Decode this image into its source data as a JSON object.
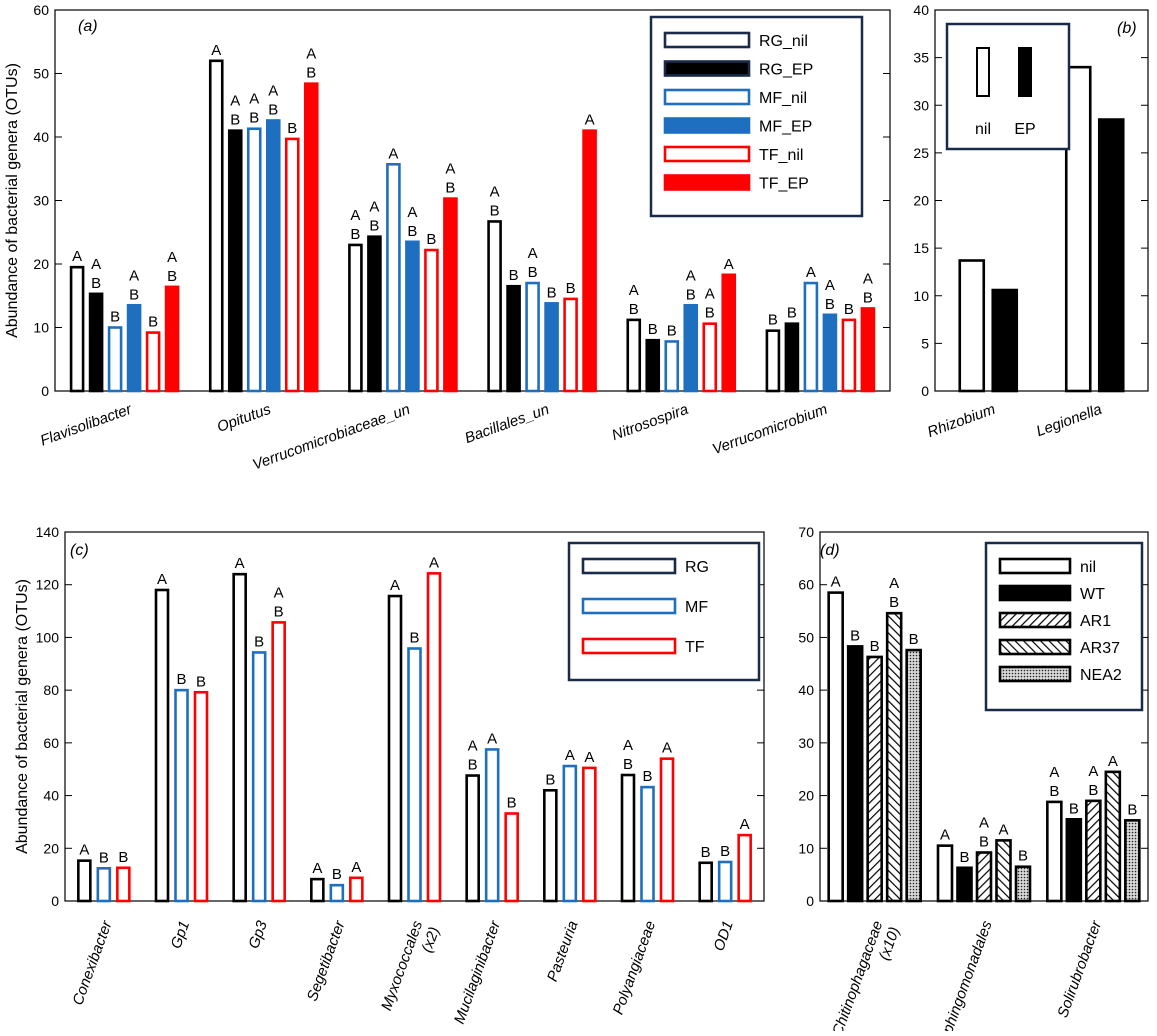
{
  "colors": {
    "RG": "#000000",
    "MF": "#1f6fc0",
    "TF": "#ff0000",
    "legend_frame": "#1a2a4a",
    "background": "#ffffff"
  },
  "chart_data": [
    {
      "panel": "a",
      "panel_label": "(a)",
      "type": "bar",
      "ylabel": "Abundance of bacterial genera (OTUs)",
      "ylim": [
        0,
        60
      ],
      "yticks": [
        0,
        10,
        20,
        30,
        40,
        50,
        60
      ],
      "categories": [
        "Flavisolibacter",
        "Opitutus",
        "Verrucomicrobiaceae_un",
        "Bacillales_un",
        "Nitrosospira",
        "Verrucomicrobium"
      ],
      "legend_position": "top-right",
      "series": [
        {
          "name": "RG_nil",
          "color": "#000000",
          "filled": false,
          "values": [
            19.5,
            52,
            23,
            26.7,
            11.2,
            9.5
          ],
          "letters": [
            "A",
            "A",
            "A\nB",
            "A\nB",
            "A\nB",
            "B"
          ]
        },
        {
          "name": "RG_EP",
          "color": "#000000",
          "filled": true,
          "values": [
            15.3,
            41,
            24.3,
            16.5,
            8,
            10.6
          ],
          "letters": [
            "A\nB",
            "A\nB",
            "A\nB",
            "B",
            "B",
            "B"
          ]
        },
        {
          "name": "MF_nil",
          "color": "#1f6fc0",
          "filled": false,
          "values": [
            10,
            41.3,
            35.7,
            17,
            7.8,
            17
          ],
          "letters": [
            "B",
            "A\nB",
            "A",
            "A\nB",
            "B",
            "A"
          ]
        },
        {
          "name": "MF_EP",
          "color": "#1f6fc0",
          "filled": true,
          "values": [
            13.5,
            42.6,
            23.5,
            13.8,
            13.5,
            12
          ],
          "letters": [
            "A\nB",
            "A\nB",
            "A\nB",
            "B",
            "A\nB",
            "A\nB"
          ]
        },
        {
          "name": "TF_nil",
          "color": "#ff0000",
          "filled": false,
          "values": [
            9.2,
            39.7,
            22.2,
            14.5,
            10.6,
            11.2
          ],
          "letters": [
            "B",
            "B",
            "B",
            "B",
            "A\nB",
            "B"
          ]
        },
        {
          "name": "TF_EP",
          "color": "#ff0000",
          "filled": true,
          "values": [
            16.4,
            48.4,
            30.3,
            41,
            18.3,
            13
          ],
          "letters": [
            "A\nB",
            "A\nB",
            "A\nB",
            "A",
            "A",
            "A\nB"
          ]
        }
      ]
    },
    {
      "panel": "b",
      "panel_label": "(b)",
      "type": "bar",
      "ylabel": "",
      "ylim": [
        0,
        40
      ],
      "yticks": [
        0,
        5,
        10,
        15,
        20,
        25,
        30,
        35,
        40
      ],
      "categories": [
        "Rhizobium",
        "Legionella"
      ],
      "legend_position": "top-left",
      "series": [
        {
          "name": "nil",
          "color": "#000000",
          "filled": false,
          "values": [
            13.7,
            34
          ],
          "letters": [
            "",
            ""
          ]
        },
        {
          "name": "EP",
          "color": "#000000",
          "filled": true,
          "values": [
            10.6,
            28.5
          ],
          "letters": [
            "",
            ""
          ]
        }
      ]
    },
    {
      "panel": "c",
      "panel_label": "(c)",
      "type": "bar",
      "ylabel": "Abundance of bacterial genera (OTUs)",
      "ylim": [
        0,
        140
      ],
      "yticks": [
        0,
        20,
        40,
        60,
        80,
        100,
        120,
        140
      ],
      "categories": [
        "Conexibacter",
        "Gp1",
        "Gp3",
        "Segetibacter",
        "Myxococcales\n(x2)",
        "Mucilaginibacter",
        "Pasteuria",
        "Polyangiaceae",
        "OD1"
      ],
      "legend_position": "top-right",
      "series": [
        {
          "name": "RG",
          "color": "#000000",
          "filled": false,
          "values": [
            15.3,
            118,
            124,
            8.3,
            115.7,
            47.6,
            42,
            47.8,
            14.5
          ],
          "letters": [
            "A",
            "A",
            "A",
            "A",
            "A",
            "A\nB",
            "B",
            "A\nB",
            "B"
          ]
        },
        {
          "name": "MF",
          "color": "#1f6fc0",
          "filled": false,
          "values": [
            12.4,
            80,
            94.3,
            6,
            95.8,
            57.5,
            51.2,
            43.2,
            14.8
          ],
          "letters": [
            "B",
            "B",
            "B",
            "B",
            "B",
            "A",
            "A",
            "B",
            "B"
          ]
        },
        {
          "name": "TF",
          "color": "#ff0000",
          "filled": false,
          "values": [
            12.6,
            79.2,
            105.7,
            8.8,
            124.3,
            33.2,
            50.5,
            54,
            25
          ],
          "letters": [
            "B",
            "B",
            "A\nB",
            "A",
            "A",
            "B",
            "A",
            "A",
            "A"
          ]
        }
      ]
    },
    {
      "panel": "d",
      "panel_label": "(d)",
      "type": "bar",
      "ylabel": "",
      "ylim": [
        0,
        70
      ],
      "yticks": [
        0,
        10,
        20,
        30,
        40,
        50,
        60,
        70
      ],
      "categories": [
        "Chitinophagaceae\n(x10)",
        "Sphingomonadales",
        "Solirubrobacter"
      ],
      "legend_position": "top-right",
      "series": [
        {
          "name": "nil",
          "color": "#000000",
          "fill": "open",
          "values": [
            58.5,
            10.5,
            18.8
          ],
          "letters": [
            "A",
            "A",
            "A\nB"
          ]
        },
        {
          "name": "WT",
          "color": "#000000",
          "fill": "solid",
          "values": [
            48.3,
            6.3,
            15.5
          ],
          "letters": [
            "B",
            "B",
            "B"
          ]
        },
        {
          "name": "AR1",
          "color": "#000000",
          "fill": "hatch-right",
          "values": [
            46.3,
            9.2,
            19
          ],
          "letters": [
            "B",
            "A\nB",
            "A\nB"
          ]
        },
        {
          "name": "AR37",
          "color": "#000000",
          "fill": "hatch-left",
          "values": [
            54.6,
            11.5,
            24.5
          ],
          "letters": [
            "A\nB",
            "A",
            "A"
          ]
        },
        {
          "name": "NEA2",
          "color": "#000000",
          "fill": "dots",
          "values": [
            47.6,
            6.5,
            15.3
          ],
          "letters": [
            "B",
            "B",
            "B"
          ]
        }
      ]
    }
  ]
}
